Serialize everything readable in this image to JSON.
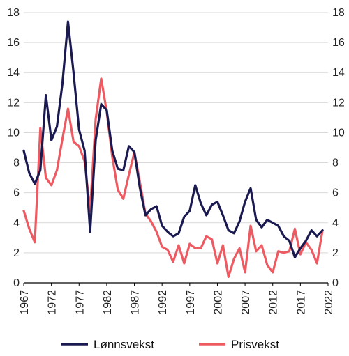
{
  "chart_data": {
    "type": "line",
    "x_tick_labels": [
      "1967",
      "1972",
      "1977",
      "1982",
      "1987",
      "1992",
      "1997",
      "2002",
      "2007",
      "2012",
      "2017",
      "2022"
    ],
    "y_tick_labels": [
      "0",
      "2",
      "4",
      "6",
      "8",
      "10",
      "12",
      "14",
      "16",
      "18"
    ],
    "xlim": [
      1967,
      2022
    ],
    "ylim": [
      0,
      18
    ],
    "grid": true,
    "legend_position": "bottom",
    "series": [
      {
        "name": "Lønnsvekst",
        "color": "#1a1a50",
        "x": [
          1967,
          1968,
          1969,
          1970,
          1971,
          1972,
          1973,
          1974,
          1975,
          1976,
          1977,
          1978,
          1979,
          1980,
          1981,
          1982,
          1983,
          1984,
          1985,
          1986,
          1987,
          1988,
          1989,
          1990,
          1991,
          1992,
          1993,
          1994,
          1995,
          1996,
          1997,
          1998,
          1999,
          2000,
          2001,
          2002,
          2003,
          2004,
          2005,
          2006,
          2007,
          2008,
          2009,
          2010,
          2011,
          2012,
          2013,
          2014,
          2015,
          2016,
          2017,
          2018,
          2019,
          2020,
          2021
        ],
        "values": [
          8.8,
          7.3,
          6.6,
          7.5,
          12.5,
          9.5,
          10.4,
          13.3,
          17.4,
          14.0,
          10.2,
          8.8,
          3.4,
          9.5,
          11.9,
          11.5,
          8.8,
          7.6,
          7.5,
          9.1,
          8.7,
          6.3,
          4.5,
          4.9,
          5.1,
          3.8,
          3.4,
          3.1,
          3.3,
          4.4,
          4.8,
          6.5,
          5.3,
          4.5,
          5.2,
          5.4,
          4.5,
          3.5,
          3.3,
          4.1,
          5.4,
          6.3,
          4.2,
          3.7,
          4.2,
          4.0,
          3.8,
          3.1,
          2.8,
          1.7,
          2.3,
          2.8,
          3.5,
          3.1,
          3.5
        ]
      },
      {
        "name": "Prisvekst",
        "color": "#ee5a62",
        "x": [
          1967,
          1968,
          1969,
          1970,
          1971,
          1972,
          1973,
          1974,
          1975,
          1976,
          1977,
          1978,
          1979,
          1980,
          1981,
          1982,
          1983,
          1984,
          1985,
          1986,
          1987,
          1988,
          1989,
          1990,
          1991,
          1992,
          1993,
          1994,
          1995,
          1996,
          1997,
          1998,
          1999,
          2000,
          2001,
          2002,
          2003,
          2004,
          2005,
          2006,
          2007,
          2008,
          2009,
          2010,
          2011,
          2012,
          2013,
          2014,
          2015,
          2016,
          2017,
          2018,
          2019,
          2020,
          2021
        ],
        "values": [
          4.8,
          3.6,
          2.7,
          10.3,
          7.0,
          6.5,
          7.5,
          9.6,
          11.6,
          9.4,
          9.1,
          8.1,
          4.8,
          10.9,
          13.6,
          11.4,
          8.4,
          6.2,
          5.6,
          7.2,
          8.7,
          6.7,
          4.6,
          4.1,
          3.4,
          2.4,
          2.2,
          1.4,
          2.5,
          1.3,
          2.6,
          2.3,
          2.3,
          3.1,
          2.9,
          1.3,
          2.5,
          0.4,
          1.6,
          2.3,
          0.7,
          3.8,
          2.1,
          2.5,
          1.2,
          0.7,
          2.1,
          2.0,
          2.1,
          3.6,
          1.9,
          2.7,
          2.2,
          1.3,
          3.5
        ]
      }
    ]
  }
}
